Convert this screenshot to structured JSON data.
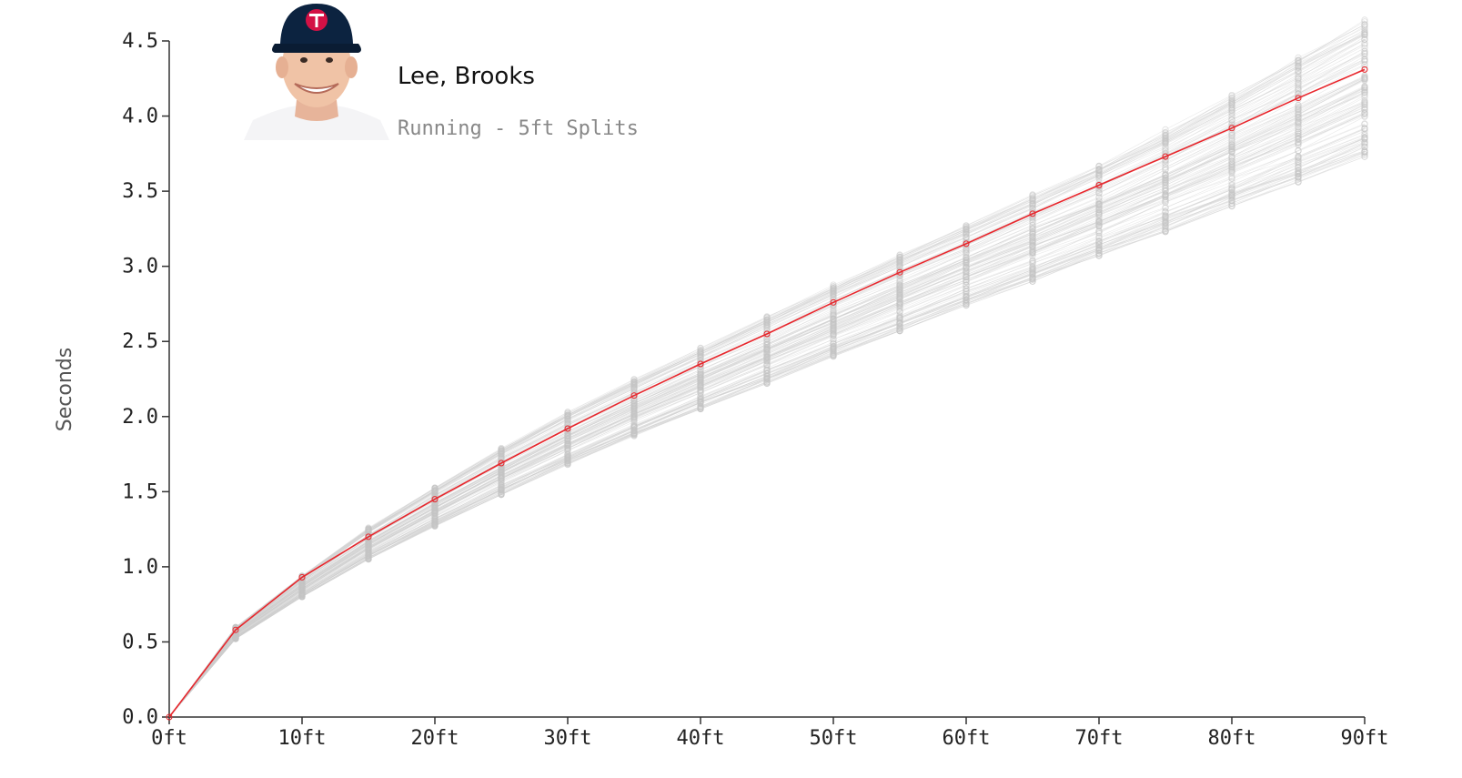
{
  "header": {
    "player_name": "Lee, Brooks",
    "subtitle": "Running - 5ft Splits"
  },
  "colors": {
    "highlight": "#e8262c",
    "background_lines": "#cfcfcf",
    "axis": "#333333",
    "cap": "#0c2340",
    "cap_logo": "#d31145"
  },
  "chart_data": {
    "type": "line",
    "ylabel": "Seconds",
    "xlabel": "",
    "x": [
      0,
      5,
      10,
      15,
      20,
      25,
      30,
      35,
      40,
      45,
      50,
      55,
      60,
      65,
      70,
      75,
      80,
      85,
      90
    ],
    "xticks": [
      0,
      10,
      20,
      30,
      40,
      50,
      60,
      70,
      80,
      90
    ],
    "xtick_labels": [
      "0ft",
      "10ft",
      "20ft",
      "30ft",
      "40ft",
      "50ft",
      "60ft",
      "70ft",
      "80ft",
      "90ft"
    ],
    "yticks": [
      0,
      0.5,
      1.0,
      1.5,
      2.0,
      2.5,
      3.0,
      3.5,
      4.0,
      4.5
    ],
    "ytick_labels": [
      "0.0",
      "0.5",
      "1.0",
      "1.5",
      "2.0",
      "2.5",
      "3.0",
      "3.5",
      "4.0",
      "4.5"
    ],
    "xlim": [
      0,
      90
    ],
    "ylim": [
      0,
      4.5
    ],
    "highlight_series": {
      "values": [
        0.0,
        0.58,
        0.93,
        1.2,
        1.45,
        1.69,
        1.92,
        2.14,
        2.35,
        2.55,
        2.76,
        2.96,
        3.15,
        3.35,
        3.54,
        3.73,
        3.92,
        4.12,
        4.31
      ]
    },
    "distribution_ranges": {
      "min": [
        0.0,
        0.52,
        0.8,
        1.05,
        1.27,
        1.48,
        1.68,
        1.87,
        2.05,
        2.22,
        2.4,
        2.57,
        2.74,
        2.9,
        3.07,
        3.23,
        3.4,
        3.56,
        3.73
      ],
      "max": [
        0.0,
        0.6,
        0.94,
        1.26,
        1.53,
        1.79,
        2.03,
        2.25,
        2.46,
        2.67,
        2.88,
        3.08,
        3.28,
        3.48,
        3.68,
        3.91,
        4.14,
        4.39,
        4.64
      ]
    },
    "grid": false
  }
}
